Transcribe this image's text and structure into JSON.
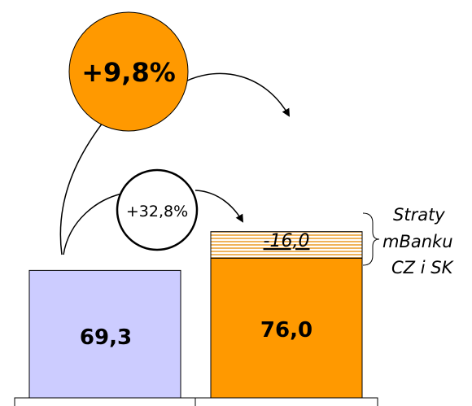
{
  "chart_data": {
    "type": "bar",
    "categories": [
      "",
      ""
    ],
    "series": [
      {
        "values": [
          69.3,
          76.0
        ],
        "labels": [
          "69,3",
          "76,0"
        ]
      },
      {
        "values": [
          0,
          -16.0
        ],
        "labels": [
          "",
          "-16,0"
        ]
      }
    ],
    "growth_total": "+9,8%",
    "growth_partial": "+32,8%",
    "annotation": "Straty\nmBanku\nCZ i SK",
    "colors": {
      "bar1": "#ccccff",
      "bar2": "#ff9900",
      "loss_stripe": "#f0b45c",
      "bubble_total": "#ff9900",
      "bubble_partial": "#ffffff"
    }
  }
}
